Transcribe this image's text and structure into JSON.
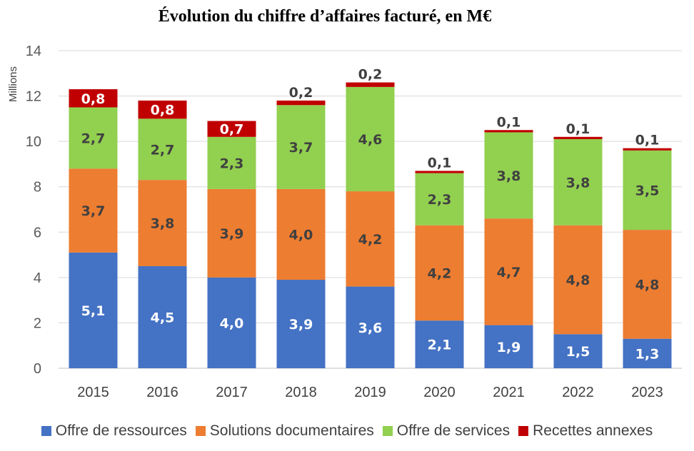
{
  "chart_data": {
    "type": "bar",
    "stacked": true,
    "title": "Évolution du chiffre d’affaires facturé, en M€",
    "ylabel": "Millions",
    "xlabel": "",
    "ylim": [
      0,
      14
    ],
    "yticks": [
      "0",
      "2",
      "4",
      "6",
      "8",
      "10",
      "12",
      "14"
    ],
    "grid": true,
    "legend_position": "bottom",
    "categories": [
      "2015",
      "2016",
      "2017",
      "2018",
      "2019",
      "2020",
      "2021",
      "2022",
      "2023"
    ],
    "series": [
      {
        "name": "Offre de ressources",
        "color": "#4472C4",
        "label_color": "#FFFFFF",
        "values": [
          5.1,
          4.5,
          4.0,
          3.9,
          3.6,
          2.1,
          1.9,
          1.5,
          1.3
        ],
        "labels": [
          "5,1",
          "4,5",
          "4,0",
          "3,9",
          "3,6",
          "2,1",
          "1,9",
          "1,5",
          "1,3"
        ]
      },
      {
        "name": "Solutions documentaires",
        "color": "#ED7D31",
        "label_color": "#404040",
        "values": [
          3.7,
          3.8,
          3.9,
          4.0,
          4.2,
          4.2,
          4.7,
          4.8,
          4.8
        ],
        "labels": [
          "3,7",
          "3,8",
          "3,9",
          "4,0",
          "4,2",
          "4,2",
          "4,7",
          "4,8",
          "4,8"
        ]
      },
      {
        "name": "Offre de services",
        "color": "#92D050",
        "label_color": "#404040",
        "values": [
          2.7,
          2.7,
          2.3,
          3.7,
          4.6,
          2.3,
          3.8,
          3.8,
          3.5
        ],
        "labels": [
          "2,7",
          "2,7",
          "2,3",
          "3,7",
          "4,6",
          "2,3",
          "3,8",
          "3,8",
          "3,5"
        ]
      },
      {
        "name": "Recettes annexes",
        "color": "#C00000",
        "label_color": "#FFFFFF",
        "label_color_above": "#404040",
        "values": [
          0.8,
          0.8,
          0.7,
          0.2,
          0.2,
          0.1,
          0.1,
          0.1,
          0.1
        ],
        "labels": [
          "0,8",
          "0,8",
          "0,7",
          "0,2",
          "0,2",
          "0,1",
          "0,1",
          "0,1",
          "0,1"
        ]
      }
    ]
  }
}
